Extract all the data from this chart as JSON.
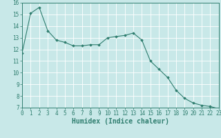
{
  "x": [
    0,
    1,
    2,
    3,
    4,
    5,
    6,
    7,
    8,
    9,
    10,
    11,
    12,
    13,
    14,
    15,
    16,
    17,
    18,
    19,
    20,
    21,
    22,
    23
  ],
  "y": [
    11.7,
    15.1,
    15.6,
    13.6,
    12.8,
    12.6,
    12.3,
    12.3,
    12.4,
    12.4,
    13.0,
    13.1,
    13.2,
    13.4,
    12.8,
    11.0,
    10.3,
    9.6,
    8.5,
    7.8,
    7.4,
    7.2,
    7.1,
    6.9
  ],
  "xlabel": "Humidex (Indice chaleur)",
  "ylim": [
    7,
    16
  ],
  "xlim": [
    0,
    23
  ],
  "yticks": [
    7,
    8,
    9,
    10,
    11,
    12,
    13,
    14,
    15,
    16
  ],
  "xticks": [
    0,
    1,
    2,
    3,
    4,
    5,
    6,
    7,
    8,
    9,
    10,
    11,
    12,
    13,
    14,
    15,
    16,
    17,
    18,
    19,
    20,
    21,
    22,
    23
  ],
  "line_color": "#2e7d6e",
  "marker": "D",
  "marker_size": 1.8,
  "bg_color": "#c8e8e8",
  "grid_color": "#ffffff",
  "tick_label_fontsize": 5.5,
  "xlabel_fontsize": 7.0
}
